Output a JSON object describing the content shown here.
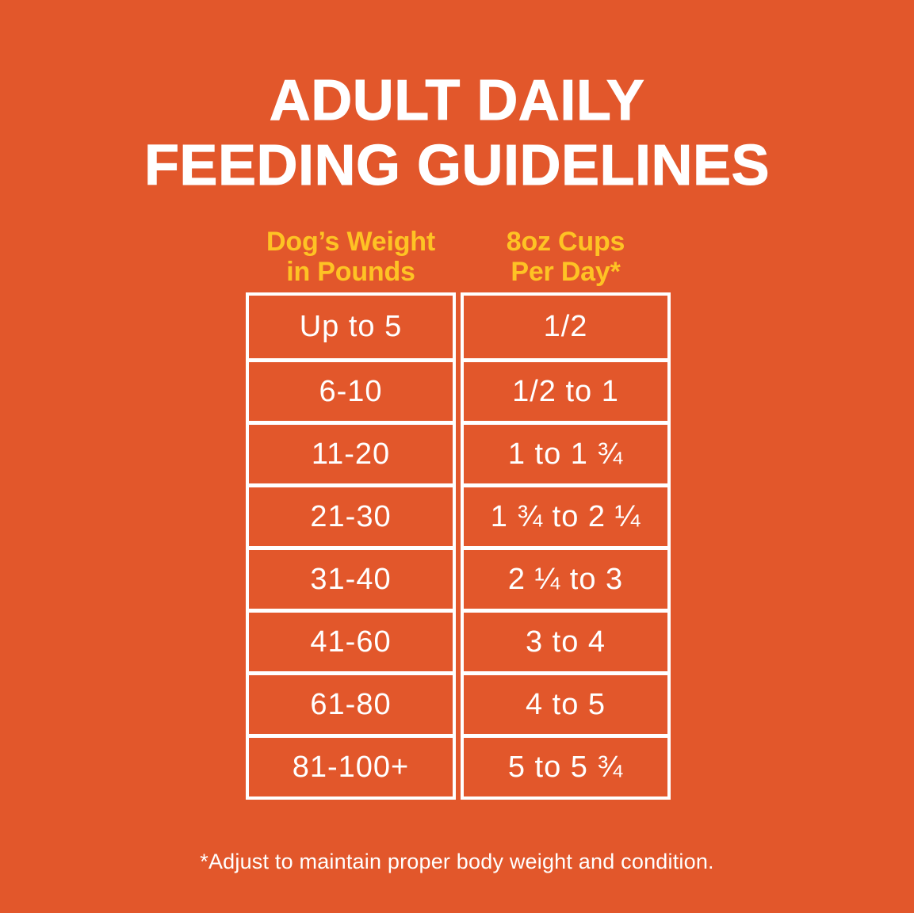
{
  "title": {
    "line1": "ADULT DAILY",
    "line2": "FEEDING GUIDELINES"
  },
  "table": {
    "headers": [
      {
        "line1": "Dog’s Weight",
        "line2": "in Pounds"
      },
      {
        "line1": "8oz Cups",
        "line2": "Per Day*"
      }
    ]
  },
  "chart_data": {
    "type": "table",
    "title": "Adult Daily Feeding Guidelines",
    "columns": [
      "Dog’s Weight in Pounds",
      "8oz Cups Per Day*"
    ],
    "rows": [
      [
        "Up to 5",
        "1/2"
      ],
      [
        "6-10",
        "1/2 to 1"
      ],
      [
        "11-20",
        "1 to 1 ¾"
      ],
      [
        "21-30",
        "1 ¾ to 2 ¼"
      ],
      [
        "31-40",
        "2 ¼ to 3"
      ],
      [
        "41-60",
        "3 to 4"
      ],
      [
        "61-80",
        "4 to 5"
      ],
      [
        "81-100+",
        "5 to 5 ¾"
      ]
    ]
  },
  "footnote": "*Adjust to maintain proper body weight and condition.",
  "colors": {
    "background": "#E2572B",
    "header_yellow": "#FEC324",
    "text_white": "#FFFFFF",
    "table_border": "#FFFFFF"
  }
}
